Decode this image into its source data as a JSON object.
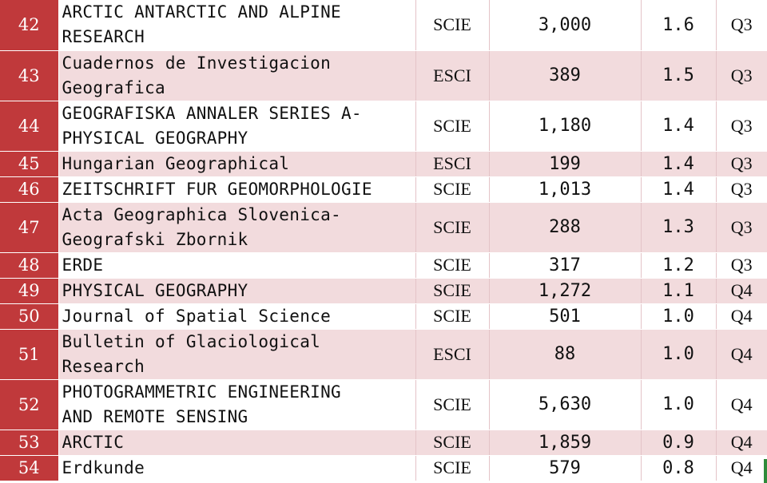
{
  "rows": [
    {
      "rank": "42",
      "name_line1": "ARCTIC ANTARCTIC AND ALPINE",
      "name_line2": "RESEARCH",
      "index": "SCIE",
      "citations": "3,000",
      "impact_factor": "1.6",
      "quartile": "Q3"
    },
    {
      "rank": "43",
      "name_line1": "Cuadernos de Investigacion",
      "name_line2": "Geografica",
      "index": "ESCI",
      "citations": "389",
      "impact_factor": "1.5",
      "quartile": "Q3"
    },
    {
      "rank": "44",
      "name_line1": "GEOGRAFISKA ANNALER SERIES A-",
      "name_line2": "PHYSICAL GEOGRAPHY",
      "index": "SCIE",
      "citations": "1,180",
      "impact_factor": "1.4",
      "quartile": "Q3"
    },
    {
      "rank": "45",
      "name_line1": "Hungarian Geographical",
      "name_line2": "",
      "index": "ESCI",
      "citations": "199",
      "impact_factor": "1.4",
      "quartile": "Q3"
    },
    {
      "rank": "46",
      "name_line1": "ZEITSCHRIFT FUR GEOMORPHOLOGIE",
      "name_line2": "",
      "index": "SCIE",
      "citations": "1,013",
      "impact_factor": "1.4",
      "quartile": "Q3"
    },
    {
      "rank": "47",
      "name_line1": "Acta Geographica Slovenica-",
      "name_line2": "Geografski Zbornik",
      "index": "SCIE",
      "citations": "288",
      "impact_factor": "1.3",
      "quartile": "Q3"
    },
    {
      "rank": "48",
      "name_line1": "ERDE",
      "name_line2": "",
      "index": "SCIE",
      "citations": "317",
      "impact_factor": "1.2",
      "quartile": "Q3"
    },
    {
      "rank": "49",
      "name_line1": "PHYSICAL GEOGRAPHY",
      "name_line2": "",
      "index": "SCIE",
      "citations": "1,272",
      "impact_factor": "1.1",
      "quartile": "Q4"
    },
    {
      "rank": "50",
      "name_line1": "Journal of Spatial Science",
      "name_line2": "",
      "index": "SCIE",
      "citations": "501",
      "impact_factor": "1.0",
      "quartile": "Q4"
    },
    {
      "rank": "51",
      "name_line1": "Bulletin of Glaciological",
      "name_line2": "Research",
      "index": "ESCI",
      "citations": "88",
      "impact_factor": "1.0",
      "quartile": "Q4"
    },
    {
      "rank": "52",
      "name_line1": "PHOTOGRAMMETRIC ENGINEERING",
      "name_line2": "AND REMOTE SENSING",
      "index": "SCIE",
      "citations": "5,630",
      "impact_factor": "1.0",
      "quartile": "Q4"
    },
    {
      "rank": "53",
      "name_line1": "ARCTIC",
      "name_line2": "",
      "index": "SCIE",
      "citations": "1,859",
      "impact_factor": "0.9",
      "quartile": "Q4"
    },
    {
      "rank": "54",
      "name_line1": "Erdkunde",
      "name_line2": "",
      "index": "SCIE",
      "citations": "579",
      "impact_factor": "0.8",
      "quartile": "Q4"
    }
  ],
  "colors": {
    "rank_bg": "#c0393b",
    "stripe_bg": "#f2dbdd",
    "edge_green": "#2e8b3a"
  }
}
